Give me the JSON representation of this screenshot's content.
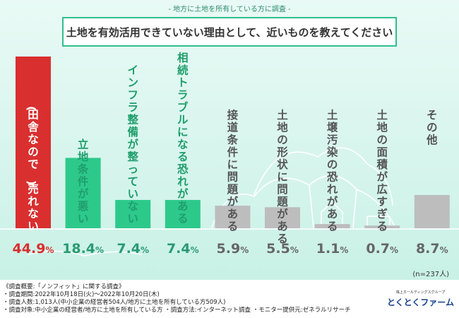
{
  "header": {
    "survey_label": "- 地方に土地を所有している方に調査 -"
  },
  "chart_data": {
    "type": "bar",
    "title": "土地を有効活用できていない理由として、近いものを教えてください",
    "categories": [
      "(田舎なので)売れない",
      "立地条件が悪い",
      "インフラ整備が整っていない",
      "相続トラブルになる恐れがある",
      "接道条件に問題がある",
      "土地の形状に問題がある",
      "土壌汚染の恐れがある",
      "土地の面積が広すぎる",
      "その他"
    ],
    "values": [
      44.9,
      18.4,
      7.4,
      7.4,
      5.9,
      5.5,
      1.1,
      0.7,
      8.7
    ],
    "value_labels": [
      "44.9%",
      "18.4%",
      "7.4%",
      "7.4%",
      "5.9%",
      "5.5%",
      "1.1%",
      "0.7%",
      "8.7%"
    ],
    "ylim": [
      0,
      44.9
    ],
    "sample_size": "(n=237人)",
    "colors": {
      "top": "#d92f2f",
      "highlight": "#2dc98b",
      "other": "#bdbdbd",
      "label_top": "#ffffff",
      "label_highlight": "#1f9e6c",
      "label_other": "#555555",
      "value_top": "#d92f2f",
      "value_highlight": "#2a9a72",
      "value_other": "#666666"
    }
  },
  "notes": [
    "《調査概要:「ノンフィット」に関する調査》",
    "・調査期間:2022年10月18日(火)～2022年10月20日(木)",
    "・調査人数:1,013人(中小企業の経営者504人/地方に土地を所有している方509人)",
    "・調査対象:中小企業の経営者/地方に土地を所有している方 ・調査方法:インターネット調査 ・モニター提供元:ゼネラルリサーチ"
  ],
  "logo": {
    "group": "株上ホールディングスグループ",
    "brand": "とくとくファーム"
  }
}
